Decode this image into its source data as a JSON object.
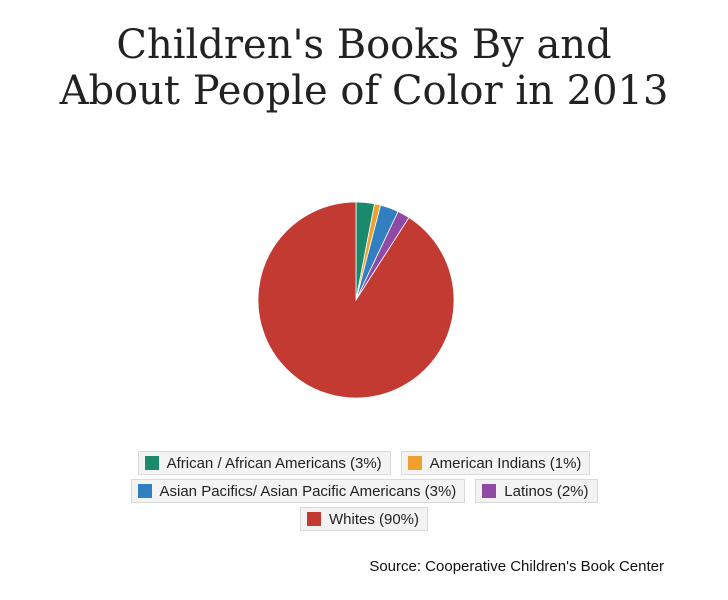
{
  "chart_data": {
    "type": "pie",
    "title_lines": [
      "Children's Books By and",
      "About People of Color in 2013"
    ],
    "slices": [
      {
        "label": "African / African Americans (3%)",
        "value": 3,
        "color": "#1a8a6b"
      },
      {
        "label": "American Indians (1%)",
        "value": 1,
        "color": "#f0a030"
      },
      {
        "label": "Asian Pacifics/ Asian Pacific Americans (3%)",
        "value": 3,
        "color": "#2f7fc1"
      },
      {
        "label": "Latinos (2%)",
        "value": 2,
        "color": "#8e4aa5"
      },
      {
        "label": "Whites (90%)",
        "value": 90,
        "color": "#c23a31"
      }
    ],
    "legend_position": "bottom",
    "source": "Source: Cooperative Children's Book Center"
  }
}
